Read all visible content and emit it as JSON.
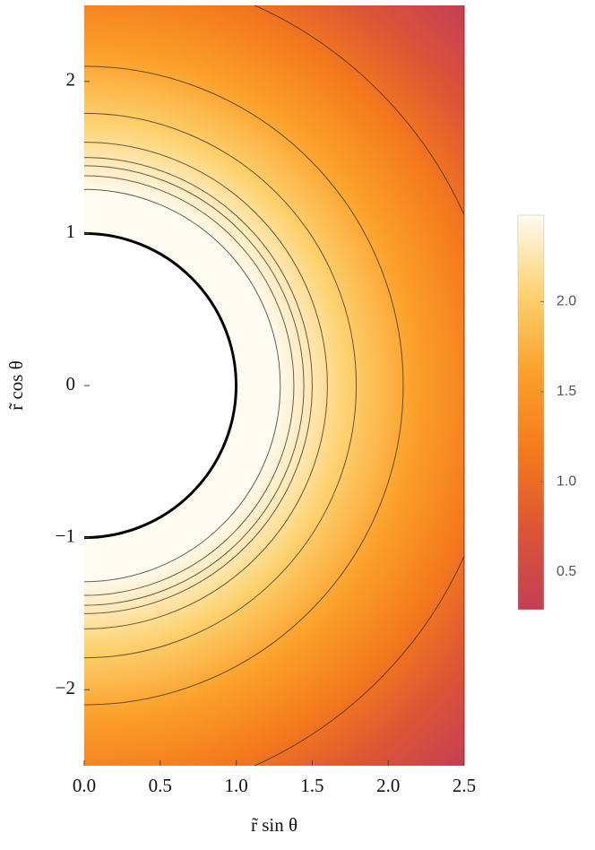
{
  "chart_data": {
    "type": "contour",
    "xlabel": "r̃ sin θ",
    "ylabel": "r̃ cos θ",
    "xlim": [
      0,
      2.5
    ],
    "ylim": [
      -2.5,
      2.5
    ],
    "xticks": [
      {
        "value": 0,
        "label": "0.0"
      },
      {
        "value": 0.5,
        "label": "0.5"
      },
      {
        "value": 1,
        "label": "1.0"
      },
      {
        "value": 1.5,
        "label": "1.5"
      },
      {
        "value": 2,
        "label": "2.0"
      },
      {
        "value": 2.5,
        "label": "2.5"
      }
    ],
    "yticks": [
      {
        "value": -2,
        "label": "−2"
      },
      {
        "value": -1,
        "label": "−1"
      },
      0,
      1,
      2
    ],
    "boundary_radius": 1,
    "contour_radii": [
      1.29,
      1.38,
      1.445,
      1.5,
      1.6,
      1.79,
      2.1,
      2.74
    ],
    "colormap": [
      "#c33f55",
      "#dc5436",
      "#f47a1c",
      "#fba02a",
      "#fdd270",
      "#fffbf0"
    ],
    "clim": [
      0.29,
      2.48
    ],
    "cticks": [
      {
        "value": 0.5,
        "label": "0.5"
      },
      {
        "value": 1,
        "label": "1.0"
      },
      {
        "value": 1.5,
        "label": "1.5"
      },
      {
        "value": 2,
        "label": "2.0"
      }
    ]
  }
}
